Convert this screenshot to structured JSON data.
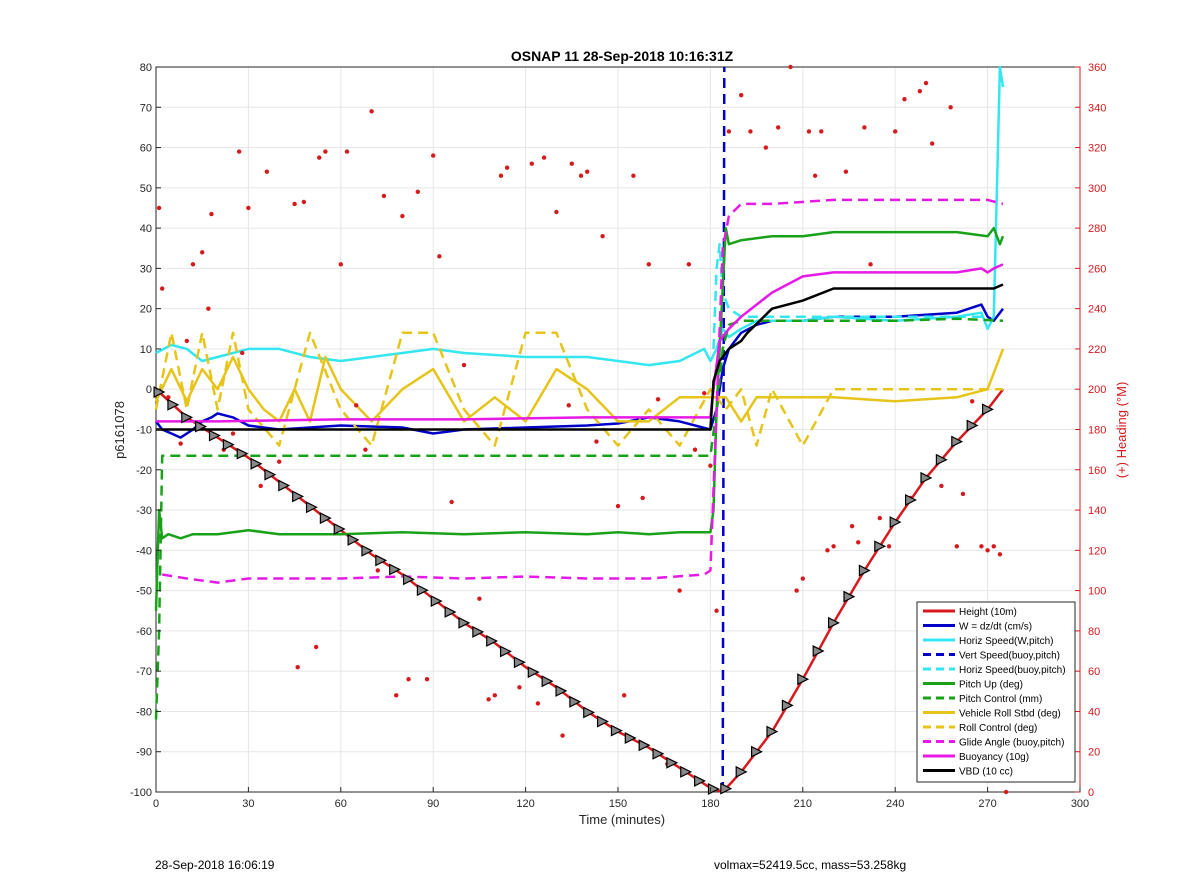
{
  "footer": {
    "date_stamp": "28-Sep-2018 16:06:19",
    "vol_mass": "volmax=52419.5cc, mass=53.258kg"
  },
  "chart_data": {
    "type": "line",
    "title": "OSNAP 11 28-Sep-2018 10:16:31Z",
    "xlabel": "Time (minutes)",
    "ylabel": "p6161078",
    "y2label": "(+) Heading (°M)",
    "xlim": [
      0,
      300
    ],
    "ylim": [
      -100,
      80
    ],
    "y2lim": [
      0,
      360
    ],
    "xticks": [
      0,
      30,
      60,
      90,
      120,
      150,
      180,
      210,
      240,
      270,
      300
    ],
    "yticks": [
      -100,
      -90,
      -80,
      -70,
      -60,
      -50,
      -40,
      -30,
      -20,
      -10,
      0,
      10,
      20,
      30,
      40,
      50,
      60,
      70,
      80
    ],
    "y2ticks": [
      0,
      20,
      40,
      60,
      80,
      100,
      120,
      140,
      160,
      180,
      200,
      220,
      240,
      260,
      280,
      300,
      320,
      340,
      360
    ],
    "grid": true,
    "legend_position": "bottom-right",
    "colors": {
      "height": "#d7191c",
      "w": "#0000c8",
      "horiz": "#33e6f0",
      "pitch": "#19a219",
      "roll": "#e6c419",
      "glide": "#e619e6",
      "buoy": "#e619e6",
      "vbd": "#000000",
      "heading": "#d7191c",
      "right_axis": "#d7191c"
    },
    "series": [
      {
        "name": "Height (10m)",
        "color": "#d7191c",
        "style": "solid",
        "x": [
          0,
          10,
          20,
          30,
          40,
          50,
          60,
          70,
          80,
          90,
          100,
          110,
          120,
          130,
          140,
          150,
          160,
          170,
          180,
          184,
          190,
          200,
          210,
          220,
          230,
          240,
          250,
          260,
          270,
          275
        ],
        "y": [
          0,
          -7,
          -12,
          -17,
          -23,
          -29,
          -35,
          -41,
          -46,
          -52,
          -58,
          -63,
          -69,
          -74,
          -80,
          -85,
          -89,
          -94,
          -99,
          -100,
          -95,
          -85,
          -72,
          -58,
          -45,
          -33,
          -22,
          -13,
          -5,
          0
        ]
      },
      {
        "name": "W = dz/dt (cm/s)",
        "color": "#0000c8",
        "style": "solid",
        "x": [
          0,
          2,
          5,
          8,
          12,
          15,
          18,
          20,
          25,
          30,
          40,
          60,
          80,
          90,
          100,
          120,
          140,
          150,
          160,
          170,
          180,
          182,
          184,
          186,
          190,
          195,
          200,
          210,
          220,
          240,
          260,
          268,
          270,
          272,
          275
        ],
        "y": [
          -8,
          -10,
          -11,
          -12,
          -10,
          -8,
          -7,
          -6,
          -7,
          -9,
          -10,
          -9,
          -9.5,
          -11,
          -10,
          -9.5,
          -9,
          -8.5,
          -7,
          -8,
          -10,
          -5,
          5,
          10,
          14,
          16,
          17,
          17,
          18,
          18,
          19,
          21,
          18,
          17,
          20
        ]
      },
      {
        "name": "Horiz Speed(W,pitch)",
        "color": "#33e6f0",
        "style": "solid",
        "x": [
          0,
          5,
          10,
          15,
          20,
          25,
          30,
          40,
          50,
          60,
          70,
          80,
          90,
          100,
          120,
          140,
          150,
          160,
          170,
          178,
          180,
          182,
          184,
          186,
          190,
          195,
          200,
          210,
          220,
          240,
          260,
          268,
          270,
          272,
          274,
          275
        ],
        "y": [
          9,
          11,
          10,
          7,
          8,
          9,
          10,
          10,
          8,
          7,
          8,
          9,
          10,
          9,
          8,
          8,
          7,
          6,
          7,
          10,
          7,
          10,
          15,
          13,
          15,
          17,
          17,
          17,
          18,
          17,
          18,
          19,
          15,
          18,
          80,
          75
        ]
      },
      {
        "name": "Vert Speed(buoy,pitch)",
        "color": "#0000c8",
        "style": "dashed",
        "x": [
          184,
          184.5
        ],
        "y": [
          -100,
          80
        ]
      },
      {
        "name": "Horiz Speed(buoy,pitch)",
        "color": "#33e6f0",
        "style": "dashed",
        "x": [
          181,
          182,
          183,
          184,
          186,
          190,
          200,
          220,
          240,
          260,
          270
        ],
        "y": [
          10,
          30,
          36,
          24,
          20,
          18,
          18,
          18,
          18,
          18,
          18
        ]
      },
      {
        "name": "Pitch Up (deg)",
        "color": "#19a219",
        "style": "solid",
        "x": [
          0,
          1,
          2,
          4,
          8,
          12,
          20,
          30,
          40,
          60,
          80,
          100,
          120,
          140,
          150,
          160,
          170,
          180,
          181,
          182,
          184,
          185,
          186,
          190,
          200,
          210,
          220,
          240,
          260,
          270,
          272,
          274,
          275
        ],
        "y": [
          -55,
          -30,
          -37,
          -36,
          -37,
          -36,
          -36,
          -35,
          -36,
          -36,
          -35.5,
          -36,
          -35.5,
          -36,
          -35.5,
          -36,
          -35.5,
          -35.5,
          -30,
          -5,
          25,
          40,
          36,
          37,
          38,
          38,
          39,
          39,
          39,
          38,
          40,
          36,
          38
        ]
      },
      {
        "name": "Pitch Control (mm)",
        "color": "#19a219",
        "style": "dashed",
        "x": [
          0,
          1,
          2,
          20,
          60,
          100,
          140,
          180,
          182,
          184,
          186,
          190,
          200,
          220,
          240,
          260,
          275
        ],
        "y": [
          -82,
          -60,
          -16.5,
          -16.5,
          -16.5,
          -16.5,
          -16.5,
          -16.5,
          -5,
          10,
          16,
          17,
          17,
          17,
          17,
          17.5,
          17
        ]
      },
      {
        "name": "Vehicle Roll Stbd (deg)",
        "color": "#e6c419",
        "style": "solid",
        "x": [
          0,
          5,
          10,
          15,
          20,
          25,
          30,
          35,
          40,
          45,
          50,
          55,
          60,
          70,
          80,
          90,
          100,
          110,
          120,
          130,
          140,
          150,
          160,
          170,
          180,
          185,
          190,
          195,
          200,
          210,
          220,
          240,
          260,
          270,
          275
        ],
        "y": [
          -3,
          5,
          -3,
          5,
          0,
          8,
          0,
          -5,
          -8,
          0,
          -8,
          8,
          0,
          -8,
          0,
          5,
          -8,
          -2,
          -8,
          5,
          0,
          -8,
          -8,
          -2,
          -2,
          -2,
          -8,
          -2,
          -2,
          -2,
          -2,
          -3,
          -2,
          0,
          10
        ]
      },
      {
        "name": "Roll Control (deg)",
        "color": "#e6c419",
        "style": "dashed",
        "x": [
          0,
          5,
          10,
          15,
          20,
          25,
          30,
          40,
          50,
          60,
          70,
          80,
          90,
          100,
          110,
          120,
          130,
          140,
          150,
          160,
          170,
          180,
          185,
          190,
          195,
          200,
          210,
          220,
          240,
          260,
          275
        ],
        "y": [
          -5,
          14,
          -5,
          14,
          -5,
          14,
          -5,
          -14,
          14,
          -5,
          -14,
          14,
          14,
          -5,
          -14,
          14,
          14,
          -5,
          -14,
          -5,
          -14,
          0,
          -5,
          0,
          -14,
          0,
          -14,
          0,
          0,
          0,
          0
        ]
      },
      {
        "name": "Glide Angle (buoy,pitch)",
        "color": "#e619e6",
        "style": "dashed",
        "x": [
          2,
          10,
          20,
          30,
          40,
          60,
          80,
          100,
          120,
          140,
          160,
          178,
          180,
          182,
          184,
          186,
          190,
          200,
          220,
          240,
          260,
          270,
          275
        ],
        "y": [
          -46,
          -47,
          -48,
          -47,
          -47,
          -47,
          -46.5,
          -47,
          -46.5,
          -47,
          -47,
          -46,
          -45,
          -5,
          35,
          43,
          46,
          46,
          47,
          47,
          47,
          47,
          46
        ]
      },
      {
        "name": "Buoyancy (10g)",
        "color": "#e619e6",
        "style": "solid",
        "x": [
          0,
          20,
          60,
          100,
          140,
          180,
          181,
          183,
          186,
          190,
          195,
          200,
          210,
          220,
          240,
          260,
          268,
          270,
          272,
          275
        ],
        "y": [
          -8,
          -8,
          -7.5,
          -7.5,
          -7,
          -7,
          0,
          12,
          15,
          18,
          21,
          24,
          28,
          29,
          29,
          29,
          30,
          29,
          30,
          31
        ]
      },
      {
        "name": "VBD (10 cc)",
        "color": "#000000",
        "style": "solid",
        "x": [
          0,
          5,
          20,
          60,
          100,
          140,
          180,
          181,
          183,
          186,
          190,
          192,
          196,
          200,
          210,
          220,
          240,
          260,
          270,
          272,
          275
        ],
        "y": [
          -10,
          -10,
          -10,
          -10,
          -10,
          -10,
          -10,
          2,
          7,
          10,
          12,
          14,
          17,
          20,
          22,
          25,
          25,
          25,
          25,
          25,
          26
        ]
      },
      {
        "name": "Heading",
        "color": "#d7191c",
        "style": "dots",
        "axis": "right",
        "x": [
          1,
          2,
          4,
          8,
          10,
          12,
          15,
          17,
          18,
          22,
          25,
          27,
          28,
          30,
          34,
          36,
          40,
          42,
          45,
          46,
          48,
          52,
          53,
          55,
          60,
          62,
          65,
          68,
          70,
          72,
          74,
          78,
          80,
          82,
          85,
          88,
          90,
          92,
          96,
          100,
          105,
          108,
          110,
          112,
          114,
          118,
          122,
          124,
          126,
          130,
          132,
          134,
          135,
          138,
          140,
          143,
          145,
          150,
          152,
          155,
          158,
          160,
          163,
          166,
          170,
          173,
          175,
          178,
          180,
          182,
          186,
          190,
          193,
          198,
          202,
          206,
          208,
          210,
          212,
          214,
          216,
          218,
          220,
          224,
          226,
          228,
          230,
          232,
          235,
          238,
          240,
          243,
          245,
          248,
          250,
          252,
          255,
          258,
          260,
          262,
          265,
          268,
          270,
          272,
          274,
          276
        ],
        "y": [
          290,
          250,
          196,
          173,
          224,
          262,
          268,
          240,
          287,
          170,
          178,
          318,
          218,
          290,
          152,
          308,
          164,
          152,
          292,
          62,
          293,
          72,
          315,
          318,
          262,
          318,
          192,
          170,
          338,
          110,
          296,
          48,
          286,
          56,
          298,
          56,
          316,
          266,
          144,
          212,
          96,
          46,
          48,
          306,
          310,
          52,
          312,
          44,
          315,
          288,
          28,
          192,
          312,
          306,
          308,
          174,
          276,
          142,
          48,
          306,
          146,
          262,
          195,
          14,
          100,
          262,
          170,
          198,
          162,
          90,
          328,
          346,
          328,
          320,
          330,
          360,
          100,
          106,
          328,
          306,
          328,
          120,
          122,
          308,
          132,
          124,
          330,
          262,
          136,
          122,
          328,
          344,
          146,
          348,
          352,
          322,
          152,
          340,
          122,
          148,
          194,
          122,
          120,
          122,
          118,
          0
        ]
      }
    ]
  }
}
